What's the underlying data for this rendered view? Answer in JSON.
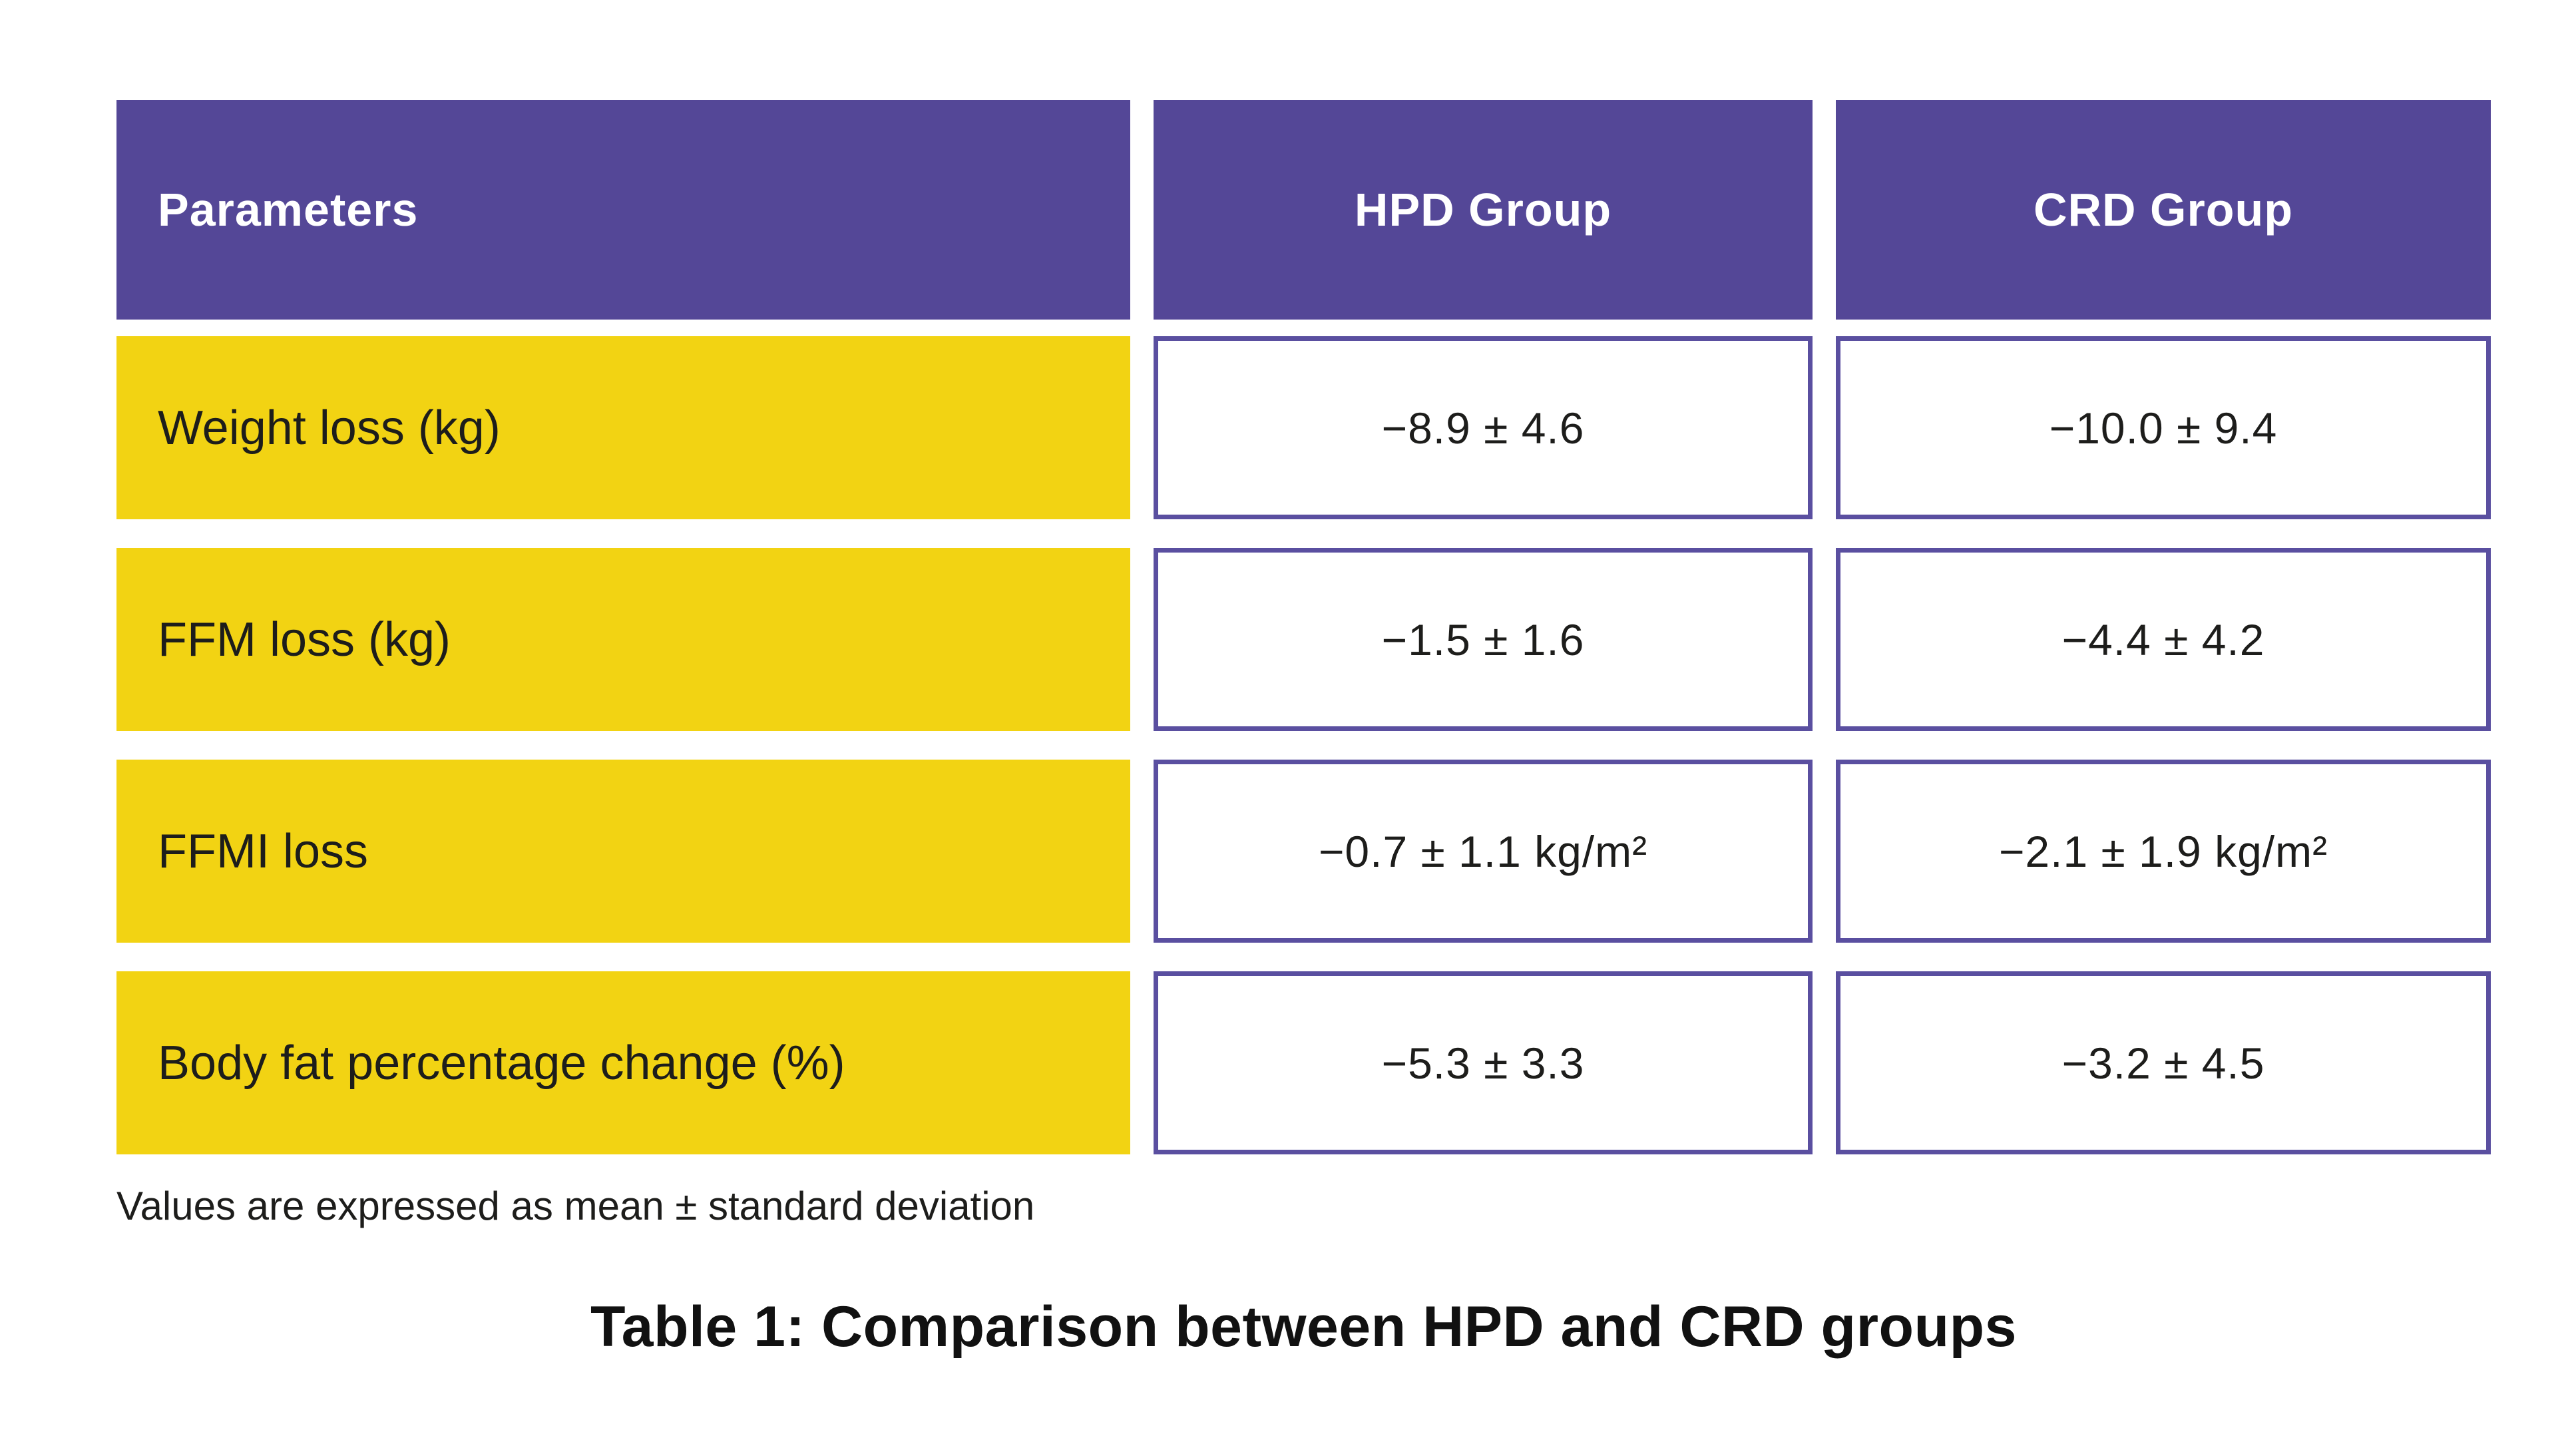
{
  "table": {
    "columns": [
      "Parameters",
      "HPD Group",
      "CRD Group"
    ],
    "rows": [
      {
        "parameter": "Weight loss (kg)",
        "hpd": "−8.9 ± 4.6",
        "crd": "−10.0 ± 9.4"
      },
      {
        "parameter": "FFM loss (kg)",
        "hpd": "−1.5 ± 1.6",
        "crd": "−4.4 ± 4.2"
      },
      {
        "parameter": "FFMI loss",
        "hpd": "−0.7 ± 1.1 kg/m²",
        "crd": "−2.1 ± 1.9 kg/m²"
      },
      {
        "parameter": "Body fat percentage change (%)",
        "hpd": "−5.3 ± 3.3",
        "crd": "−3.2 ± 4.5"
      }
    ],
    "footnote": "Values are expressed as mean ± standard deviation",
    "caption": "Table 1: Comparison between HPD and CRD groups"
  },
  "colors": {
    "header_purple": "#544797",
    "cell_border": "#5A4FA0",
    "row_yellow": "#F2D313",
    "text_dark": "#1D1D1B"
  }
}
